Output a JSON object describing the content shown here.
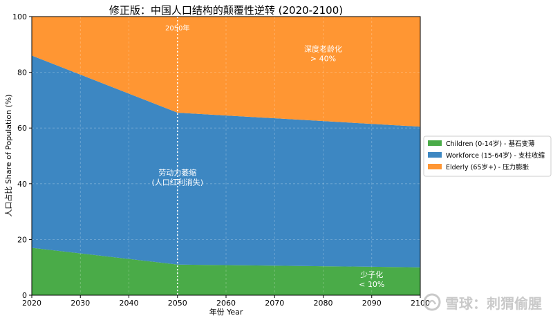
{
  "chart_data": {
    "type": "area",
    "stacked": true,
    "title": "修正版：中国人口结构的颠覆性逆转 (2020-2100)",
    "xlabel": "年份 Year",
    "ylabel": "人口占比 Share of Population (%)",
    "xlim": [
      2020,
      2100
    ],
    "ylim": [
      0,
      100
    ],
    "xticks": [
      2020,
      2030,
      2040,
      2050,
      2060,
      2070,
      2080,
      2090,
      2100
    ],
    "yticks": [
      0,
      20,
      40,
      60,
      80,
      100
    ],
    "grid": true,
    "legend_position": "right, outside plot",
    "x": [
      2020,
      2050,
      2100
    ],
    "series": [
      {
        "name": "Children (0-14岁) - 基石变薄",
        "color": "#4aab48",
        "values": [
          17,
          11,
          10
        ]
      },
      {
        "name": "Workforce (15-64岁) - 支柱收缩",
        "color": "#3d87c2",
        "values": [
          69,
          54.5,
          50.5
        ]
      },
      {
        "name": "Elderly (65岁+) - 压力膨胀",
        "color": "#ff9633",
        "values": [
          14,
          34.5,
          39.5
        ]
      }
    ],
    "reference_line": {
      "x": 2050,
      "label": "2050年",
      "color": "#ffffff"
    },
    "annotations": [
      {
        "lines": [
          "深度老龄化",
          "> 40%"
        ],
        "x": 2080,
        "y": 87.5
      },
      {
        "lines": [
          "劳动力萎缩",
          "(人口红利消失)"
        ],
        "x": 2050,
        "y": 43
      },
      {
        "lines": [
          "少子化",
          "< 10%"
        ],
        "x": 2090,
        "y": 6.5
      }
    ]
  },
  "watermark": {
    "text": "雪球：刺猬偷腥"
  }
}
